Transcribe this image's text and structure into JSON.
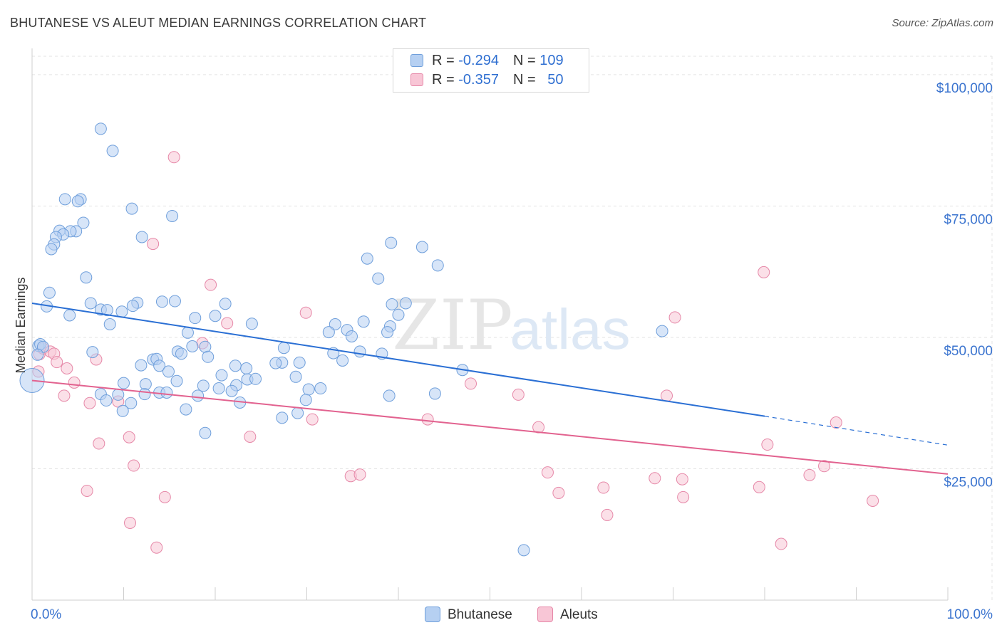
{
  "chart_data": {
    "type": "scatter",
    "title": "BHUTANESE VS ALEUT MEDIAN EARNINGS CORRELATION CHART",
    "source": "Source: ZipAtlas.com",
    "watermark_main": "ZIP",
    "watermark_sub": "atlas",
    "xlabel": "",
    "ylabel": "Median Earnings",
    "xlim": [
      0,
      100
    ],
    "ylim": [
      0,
      105000
    ],
    "x_tick_labels": [
      "0.0%",
      "100.0%"
    ],
    "y_ticks": [
      25000,
      50000,
      75000,
      100000
    ],
    "y_tick_labels": [
      "$25,000",
      "$50,000",
      "$75,000",
      "$100,000"
    ],
    "colors": {
      "blue_fill": "#b6d0f2",
      "blue_stroke": "#6f9fdb",
      "blue_line": "#2a6fd4",
      "pink_fill": "#f8c6d6",
      "pink_stroke": "#e688a8",
      "pink_line": "#e2628f",
      "grid": "#e3e3e3",
      "axis_text": "#3b74cf"
    },
    "legend": {
      "rows": [
        {
          "r_label": "R = ",
          "r_value": "-0.294",
          "n_label": "N = ",
          "n_value": "109"
        },
        {
          "r_label": "R = ",
          "r_value": "-0.357",
          "n_label": "N = ",
          "n_value": "50"
        }
      ],
      "bottom": [
        "Bhutanese",
        "Aleuts"
      ]
    },
    "series": [
      {
        "name": "Bhutanese",
        "trend": {
          "x0": 0,
          "y0": 56500,
          "x1": 80,
          "y1": 35000,
          "dash_x1": 100,
          "dash_y1": 29500
        },
        "points": [
          [
            7.5,
            89700
          ],
          [
            8.8,
            85500
          ],
          [
            3.6,
            76300
          ],
          [
            5.3,
            76300
          ],
          [
            5.0,
            75900
          ],
          [
            10.9,
            74500
          ],
          [
            15.3,
            73100
          ],
          [
            5.6,
            71800
          ],
          [
            3.0,
            70300
          ],
          [
            4.8,
            70200
          ],
          [
            4.2,
            70200
          ],
          [
            3.4,
            69600
          ],
          [
            12.0,
            69100
          ],
          [
            2.6,
            69100
          ],
          [
            2.4,
            67700
          ],
          [
            2.1,
            66800
          ],
          [
            39.2,
            68000
          ],
          [
            42.6,
            67200
          ],
          [
            36.6,
            65000
          ],
          [
            44.3,
            63700
          ],
          [
            5.9,
            61400
          ],
          [
            37.8,
            61200
          ],
          [
            1.9,
            58500
          ],
          [
            6.4,
            56500
          ],
          [
            11.5,
            56600
          ],
          [
            14.2,
            56800
          ],
          [
            15.6,
            56900
          ],
          [
            21.1,
            56400
          ],
          [
            39.3,
            56300
          ],
          [
            40.8,
            56500
          ],
          [
            1.6,
            55900
          ],
          [
            7.5,
            55300
          ],
          [
            8.2,
            55200
          ],
          [
            11.0,
            56000
          ],
          [
            9.8,
            54900
          ],
          [
            4.1,
            54200
          ],
          [
            17.8,
            53700
          ],
          [
            20.0,
            54100
          ],
          [
            40.0,
            54300
          ],
          [
            8.5,
            52500
          ],
          [
            24.0,
            52600
          ],
          [
            33.1,
            52500
          ],
          [
            36.2,
            53000
          ],
          [
            39.1,
            52100
          ],
          [
            34.4,
            51400
          ],
          [
            34.9,
            50200
          ],
          [
            32.4,
            51000
          ],
          [
            38.8,
            51000
          ],
          [
            68.8,
            51200
          ],
          [
            17.0,
            50900
          ],
          [
            0.7,
            48400
          ],
          [
            0.9,
            48700
          ],
          [
            1.2,
            48200
          ],
          [
            17.5,
            48300
          ],
          [
            18.9,
            48200
          ],
          [
            27.5,
            48000
          ],
          [
            35.8,
            47300
          ],
          [
            0.6,
            46700
          ],
          [
            6.6,
            47200
          ],
          [
            15.9,
            47300
          ],
          [
            16.3,
            46900
          ],
          [
            32.9,
            47000
          ],
          [
            38.2,
            46900
          ],
          [
            13.2,
            45800
          ],
          [
            13.6,
            45900
          ],
          [
            19.2,
            46300
          ],
          [
            27.3,
            45200
          ],
          [
            26.6,
            45100
          ],
          [
            29.2,
            45200
          ],
          [
            33.9,
            45600
          ],
          [
            11.9,
            44700
          ],
          [
            13.9,
            44600
          ],
          [
            22.2,
            44600
          ],
          [
            23.4,
            44100
          ],
          [
            14.9,
            43500
          ],
          [
            47.0,
            43800
          ],
          [
            20.7,
            42800
          ],
          [
            28.8,
            42500
          ],
          [
            23.5,
            42000
          ],
          [
            24.4,
            42100
          ],
          [
            10.0,
            41300
          ],
          [
            12.4,
            41100
          ],
          [
            15.8,
            41700
          ],
          [
            18.7,
            40800
          ],
          [
            22.3,
            40900
          ],
          [
            20.4,
            40300
          ],
          [
            30.2,
            40100
          ],
          [
            31.5,
            40300
          ],
          [
            12.3,
            39200
          ],
          [
            13.9,
            39500
          ],
          [
            14.7,
            39500
          ],
          [
            7.5,
            39200
          ],
          [
            9.4,
            39100
          ],
          [
            18.1,
            38900
          ],
          [
            21.8,
            39800
          ],
          [
            39.0,
            38900
          ],
          [
            44.0,
            39300
          ],
          [
            29.9,
            38100
          ],
          [
            8.1,
            38000
          ],
          [
            10.8,
            37500
          ],
          [
            22.7,
            37600
          ],
          [
            9.9,
            36000
          ],
          [
            16.8,
            36300
          ],
          [
            29.0,
            35600
          ],
          [
            27.3,
            34700
          ],
          [
            18.9,
            31800
          ],
          [
            53.7,
            9500
          ]
        ]
      },
      {
        "name": "Aleuts",
        "trend": {
          "x0": 0,
          "y0": 41800,
          "x1": 100,
          "y1": 24000
        },
        "points": [
          [
            15.5,
            84300
          ],
          [
            13.2,
            67800
          ],
          [
            79.9,
            62400
          ],
          [
            19.5,
            60000
          ],
          [
            70.2,
            53800
          ],
          [
            29.9,
            54700
          ],
          [
            21.3,
            52700
          ],
          [
            0.8,
            46800
          ],
          [
            1.2,
            47900
          ],
          [
            2.0,
            47300
          ],
          [
            2.4,
            46900
          ],
          [
            18.6,
            48900
          ],
          [
            7.0,
            45800
          ],
          [
            2.7,
            45300
          ],
          [
            3.8,
            44100
          ],
          [
            0.7,
            43500
          ],
          [
            4.6,
            41400
          ],
          [
            47.9,
            41200
          ],
          [
            53.1,
            39100
          ],
          [
            69.3,
            38900
          ],
          [
            3.5,
            38900
          ],
          [
            9.4,
            37800
          ],
          [
            6.3,
            37500
          ],
          [
            30.6,
            34400
          ],
          [
            43.2,
            34400
          ],
          [
            87.8,
            33800
          ],
          [
            55.3,
            32900
          ],
          [
            10.6,
            31000
          ],
          [
            23.8,
            31100
          ],
          [
            7.3,
            29800
          ],
          [
            80.3,
            29600
          ],
          [
            11.1,
            25600
          ],
          [
            86.5,
            25500
          ],
          [
            84.9,
            23800
          ],
          [
            56.3,
            24300
          ],
          [
            34.8,
            23600
          ],
          [
            35.8,
            23900
          ],
          [
            68.0,
            23200
          ],
          [
            71.0,
            23000
          ],
          [
            6.0,
            20800
          ],
          [
            14.5,
            19600
          ],
          [
            57.5,
            20400
          ],
          [
            62.4,
            21400
          ],
          [
            79.4,
            21500
          ],
          [
            71.1,
            19600
          ],
          [
            91.8,
            18900
          ],
          [
            62.8,
            16200
          ],
          [
            10.7,
            14700
          ],
          [
            13.6,
            10000
          ],
          [
            81.8,
            10700
          ]
        ]
      }
    ]
  }
}
